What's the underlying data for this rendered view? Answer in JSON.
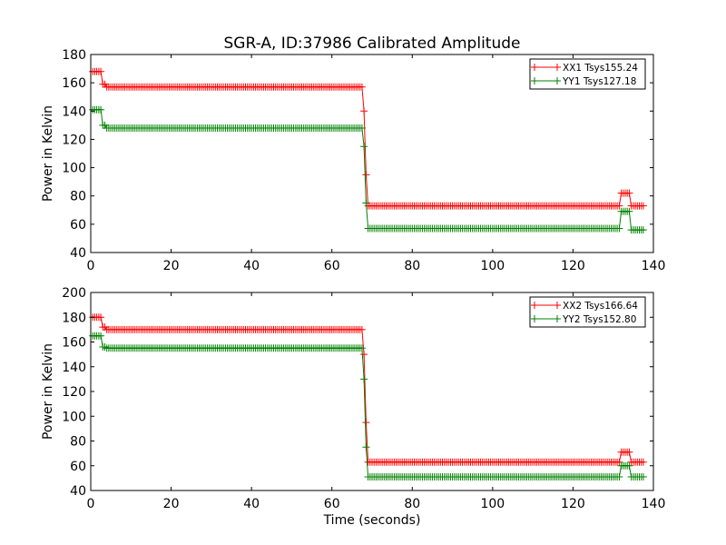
{
  "figure": {
    "title": "SGR-A, ID:37986 Calibrated Amplitude",
    "xlabel": "Time (seconds)"
  },
  "chart_data": [
    {
      "type": "line",
      "title": "SGR-A, ID:37986 Calibrated Amplitude",
      "xlabel": "",
      "ylabel": "Power in Kelvin",
      "xlim": [
        0,
        140
      ],
      "ylim": [
        40,
        180
      ],
      "xticks": [
        0,
        20,
        40,
        60,
        80,
        100,
        120,
        140
      ],
      "yticks": [
        40,
        60,
        80,
        100,
        120,
        140,
        160,
        180
      ],
      "grid": false,
      "legend_position": "top-right",
      "series": [
        {
          "name": "XX1 Tsys155.24",
          "color": "#ff0000",
          "marker": "+",
          "x_start": 0.5,
          "x_step": 0.5,
          "pattern": [
            {
              "x_until": 2.5,
              "y": 168
            },
            {
              "x_until": 3.5,
              "y": 159
            },
            {
              "x_until": 67.5,
              "y": 157
            },
            {
              "x_until": 68.0,
              "y": 140
            },
            {
              "x_until": 68.5,
              "y": 95
            },
            {
              "x_until": 131.5,
              "y": 73
            },
            {
              "x_until": 134.0,
              "y": 82
            },
            {
              "x_until": 137.5,
              "y": 73
            }
          ]
        },
        {
          "name": "YY1 Tsys127.18",
          "color": "#008000",
          "marker": "+",
          "x_start": 0.5,
          "x_step": 0.5,
          "pattern": [
            {
              "x_until": 2.5,
              "y": 141
            },
            {
              "x_until": 3.5,
              "y": 130
            },
            {
              "x_until": 67.5,
              "y": 128
            },
            {
              "x_until": 68.0,
              "y": 115
            },
            {
              "x_until": 68.5,
              "y": 75
            },
            {
              "x_until": 131.5,
              "y": 57
            },
            {
              "x_until": 134.0,
              "y": 69
            },
            {
              "x_until": 137.5,
              "y": 56
            }
          ]
        }
      ]
    },
    {
      "type": "line",
      "title": "",
      "xlabel": "Time (seconds)",
      "ylabel": "Power in Kelvin",
      "xlim": [
        0,
        140
      ],
      "ylim": [
        40,
        200
      ],
      "xticks": [
        0,
        20,
        40,
        60,
        80,
        100,
        120,
        140
      ],
      "yticks": [
        40,
        60,
        80,
        100,
        120,
        140,
        160,
        180,
        200
      ],
      "grid": false,
      "legend_position": "top-right",
      "series": [
        {
          "name": "XX2 Tsys166.64",
          "color": "#ff0000",
          "marker": "+",
          "x_start": 0.5,
          "x_step": 0.5,
          "pattern": [
            {
              "x_until": 2.5,
              "y": 180
            },
            {
              "x_until": 3.5,
              "y": 172
            },
            {
              "x_until": 67.5,
              "y": 170
            },
            {
              "x_until": 68.0,
              "y": 150
            },
            {
              "x_until": 68.5,
              "y": 95
            },
            {
              "x_until": 131.5,
              "y": 63
            },
            {
              "x_until": 134.0,
              "y": 71
            },
            {
              "x_until": 137.5,
              "y": 63
            }
          ]
        },
        {
          "name": "YY2 Tsys152.80",
          "color": "#008000",
          "marker": "+",
          "x_start": 0.5,
          "x_step": 0.5,
          "pattern": [
            {
              "x_until": 2.5,
              "y": 165
            },
            {
              "x_until": 3.5,
              "y": 156
            },
            {
              "x_until": 67.5,
              "y": 155
            },
            {
              "x_until": 68.0,
              "y": 130
            },
            {
              "x_until": 68.5,
              "y": 75
            },
            {
              "x_until": 131.5,
              "y": 51
            },
            {
              "x_until": 134.0,
              "y": 60
            },
            {
              "x_until": 137.5,
              "y": 51
            }
          ]
        }
      ]
    }
  ]
}
